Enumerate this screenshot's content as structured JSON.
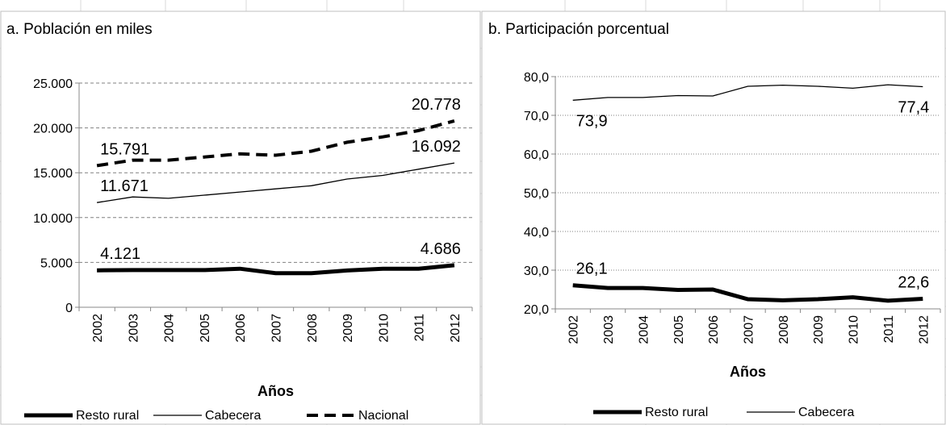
{
  "chart_data": [
    {
      "type": "line",
      "title": "a. Población en miles",
      "x_label": "Años",
      "categories": [
        "2002",
        "2003",
        "2004",
        "2005",
        "2006",
        "2007",
        "2008",
        "2009",
        "2010",
        "2011",
        "2012"
      ],
      "series": [
        {
          "name": "Resto rural",
          "color": "#000000",
          "line_width": 5,
          "dash": "solid",
          "values": [
            4121,
            4150,
            4150,
            4150,
            4300,
            3800,
            3800,
            4100,
            4300,
            4300,
            4686
          ],
          "value_labels": [
            "4.121",
            null,
            null,
            null,
            null,
            null,
            null,
            null,
            null,
            null,
            "4.686"
          ]
        },
        {
          "name": "Cabecera",
          "color": "#000000",
          "line_width": 1.3,
          "dash": "solid",
          "values": [
            11671,
            12300,
            12150,
            12500,
            12850,
            13200,
            13550,
            14300,
            14700,
            15400,
            16092
          ],
          "value_labels": [
            "11.671",
            null,
            null,
            null,
            null,
            null,
            null,
            null,
            null,
            null,
            "16.092"
          ]
        },
        {
          "name": "Nacional",
          "color": "#000000",
          "line_width": 4,
          "dash": "dashed",
          "values": [
            15791,
            16400,
            16400,
            16750,
            17100,
            16950,
            17400,
            18400,
            19000,
            19700,
            20778
          ],
          "value_labels": [
            "15.791",
            null,
            null,
            null,
            null,
            null,
            null,
            null,
            null,
            null,
            "20.778"
          ]
        }
      ],
      "ylim": [
        0,
        25000
      ],
      "yticks": [
        0,
        {
          "value": 5000,
          "label": "5.000"
        },
        {
          "value": 10000,
          "label": "10.000"
        },
        {
          "value": 15000,
          "label": "15.000"
        },
        {
          "value": 20000,
          "label": "20.000"
        },
        {
          "value": 25000,
          "label": "25.000"
        }
      ],
      "grid": true,
      "grid_style": "dashed",
      "legend": "bottom"
    },
    {
      "type": "line",
      "title": "b. Participación porcentual",
      "x_label": "Años",
      "categories": [
        "2002",
        "2003",
        "2004",
        "2005",
        "2006",
        "2007",
        "2008",
        "2009",
        "2010",
        "2011",
        "2012"
      ],
      "series": [
        {
          "name": "Resto rural",
          "color": "#000000",
          "line_width": 5,
          "dash": "solid",
          "values": [
            26.1,
            25.4,
            25.4,
            24.9,
            25.0,
            22.5,
            22.2,
            22.5,
            23.0,
            22.1,
            22.6
          ],
          "value_labels": [
            "26,1",
            null,
            null,
            null,
            null,
            null,
            null,
            null,
            null,
            null,
            "22,6"
          ]
        },
        {
          "name": "Cabecera",
          "color": "#000000",
          "line_width": 1.3,
          "dash": "solid",
          "values": [
            73.9,
            74.6,
            74.6,
            75.1,
            75.0,
            77.5,
            77.8,
            77.5,
            77.0,
            77.9,
            77.4
          ],
          "value_labels": [
            "73,9",
            null,
            null,
            null,
            null,
            null,
            null,
            null,
            null,
            null,
            "77,4"
          ]
        }
      ],
      "ylim": [
        20,
        80
      ],
      "yticks": [
        {
          "value": 20,
          "label": "20,0"
        },
        {
          "value": 30,
          "label": "30,0"
        },
        {
          "value": 40,
          "label": "40,0"
        },
        {
          "value": 50,
          "label": "50,0"
        },
        {
          "value": 60,
          "label": "60,0"
        },
        {
          "value": 70,
          "label": "70,0"
        },
        {
          "value": 80,
          "label": "80,0"
        }
      ],
      "grid": true,
      "grid_style": "dotted",
      "legend": "bottom"
    }
  ]
}
